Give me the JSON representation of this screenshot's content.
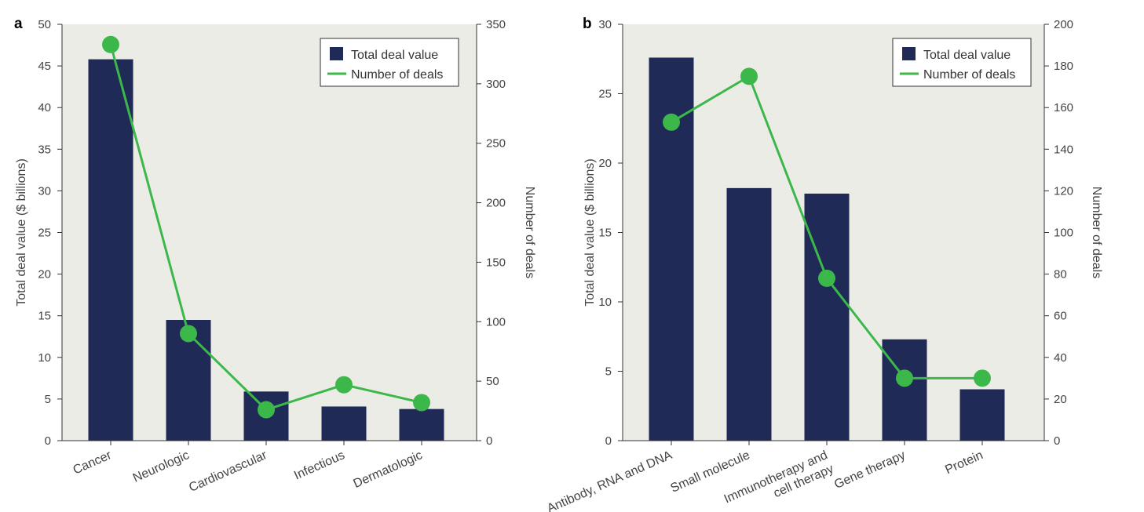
{
  "colors": {
    "plot_background": "#ecece6",
    "bar": "#1f2b56",
    "line": "#3cb84a",
    "axis": "#333333"
  },
  "chart_data": [
    {
      "type": "bar",
      "panel_label": "a",
      "categories": [
        "Cancer",
        "Neurologic",
        "Cardiovascular",
        "Infectious",
        "Dermatologic"
      ],
      "series": [
        {
          "name": "Total deal value",
          "type": "bar",
          "axis": "left",
          "values": [
            45.8,
            14.5,
            5.9,
            4.1,
            3.8
          ]
        },
        {
          "name": "Number of deals",
          "type": "line",
          "axis": "right",
          "values": [
            333,
            90,
            26,
            47,
            32
          ]
        }
      ],
      "ylabel": "Total deal value ($ billions)",
      "ylim": [
        0,
        50
      ],
      "yticks": [
        "0",
        "5",
        "10",
        "15",
        "20",
        "25",
        "30",
        "35",
        "40",
        "45",
        "50"
      ],
      "y2label": "Number of deals",
      "y2lim": [
        0,
        350
      ],
      "y2ticks": [
        "0",
        "50",
        "100",
        "150",
        "200",
        "250",
        "300",
        "350"
      ],
      "legend": {
        "position": "top-right",
        "entries": [
          "Total deal value",
          "Number of deals"
        ]
      },
      "grid": false
    },
    {
      "type": "bar",
      "panel_label": "b",
      "categories": [
        "Antibody, RNA and DNA",
        "Small molecule",
        "Immunotherapy and cell therapy",
        "Gene therapy",
        "Protein"
      ],
      "category_lines": [
        [
          "Antibody, RNA and DNA"
        ],
        [
          "Small molecule"
        ],
        [
          "Immunotherapy and",
          "cell therapy"
        ],
        [
          "Gene therapy"
        ],
        [
          "Protein"
        ]
      ],
      "series": [
        {
          "name": "Total deal value",
          "type": "bar",
          "axis": "left",
          "values": [
            27.6,
            18.2,
            17.8,
            7.3,
            3.7
          ]
        },
        {
          "name": "Number of deals",
          "type": "line",
          "axis": "right",
          "values": [
            153,
            175,
            78,
            30,
            30
          ]
        }
      ],
      "ylabel": "Total deal value ($ billions)",
      "ylim": [
        0,
        30
      ],
      "yticks": [
        "0",
        "5",
        "10",
        "15",
        "20",
        "25",
        "30"
      ],
      "y2label": "Number of deals",
      "y2lim": [
        0,
        200
      ],
      "y2ticks": [
        "0",
        "20",
        "40",
        "60",
        "80",
        "100",
        "120",
        "140",
        "160",
        "180",
        "200"
      ],
      "legend": {
        "position": "top-right",
        "entries": [
          "Total deal value",
          "Number of deals"
        ]
      },
      "grid": false
    }
  ]
}
